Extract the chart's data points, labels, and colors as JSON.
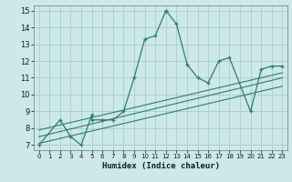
{
  "xlabel": "Humidex (Indice chaleur)",
  "bg_color": "#cce8e8",
  "grid_color": "#aacccc",
  "line_color": "#2e7d6e",
  "xlim": [
    -0.5,
    23.5
  ],
  "ylim": [
    6.7,
    15.3
  ],
  "yticks": [
    7,
    8,
    9,
    10,
    11,
    12,
    13,
    14,
    15
  ],
  "xticks": [
    0,
    1,
    2,
    3,
    4,
    5,
    6,
    7,
    8,
    9,
    10,
    11,
    12,
    13,
    14,
    15,
    16,
    17,
    18,
    19,
    20,
    21,
    22,
    23
  ],
  "series1_x": [
    0,
    2,
    3,
    4,
    5,
    5,
    6,
    7,
    8,
    9,
    10,
    11,
    12,
    12,
    13,
    14,
    15,
    16,
    17,
    18,
    20,
    21,
    22,
    23
  ],
  "series1_y": [
    7.0,
    8.5,
    7.5,
    7.0,
    8.8,
    8.5,
    8.5,
    8.5,
    9.0,
    11.0,
    13.3,
    13.5,
    15.0,
    15.0,
    14.2,
    11.8,
    11.0,
    10.7,
    12.0,
    12.2,
    9.0,
    11.5,
    11.7,
    11.7
  ],
  "trend1_x": [
    0,
    23
  ],
  "trend1_y": [
    7.9,
    11.3
  ],
  "trend2_x": [
    0,
    23
  ],
  "trend2_y": [
    7.5,
    11.0
  ],
  "trend3_x": [
    0,
    23
  ],
  "trend3_y": [
    7.1,
    10.5
  ]
}
